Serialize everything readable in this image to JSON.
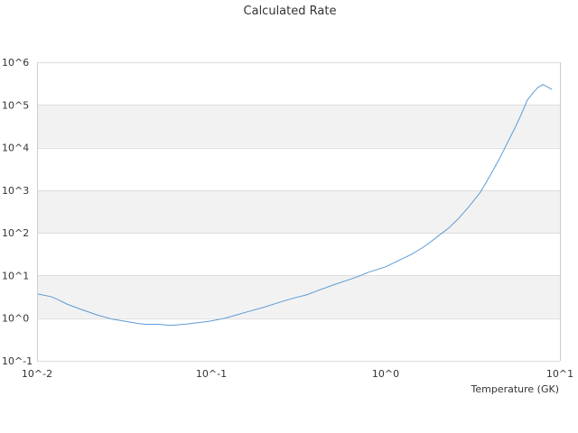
{
  "chart_data": {
    "type": "line",
    "title": "Calculated Rate",
    "xlabel": "Temperature (GK)",
    "ylabel": "",
    "x_scale": "log",
    "y_scale": "log",
    "xlim": [
      0.01,
      10
    ],
    "ylim": [
      0.1,
      1000000
    ],
    "x_ticks": [
      0.01,
      0.1,
      1,
      10
    ],
    "x_tick_labels": [
      "10^-2",
      "10^-1",
      "10^0",
      "10^1"
    ],
    "y_ticks": [
      0.1,
      1,
      10,
      100,
      1000,
      10000,
      100000,
      1000000
    ],
    "y_tick_labels": [
      "10^-1",
      "10^0",
      "10^1",
      "10^2",
      "10^3",
      "10^4",
      "10^5",
      "10^6"
    ],
    "grid": "horizontal alternating bands",
    "band_color": "#f2f2f2",
    "gridline_color": "#dddddd",
    "line_color": "#5b9bd5",
    "series": [
      {
        "x": [
          0.01,
          0.012,
          0.013,
          0.015,
          0.018,
          0.022,
          0.027,
          0.032,
          0.038,
          0.042,
          0.05,
          0.058,
          0.065,
          0.072,
          0.08,
          0.09,
          0.1,
          0.12,
          0.14,
          0.16,
          0.2,
          0.25,
          0.3,
          0.35,
          0.4,
          0.5,
          0.6,
          0.7,
          0.8,
          1.0,
          1.2,
          1.4,
          1.6,
          1.8,
          2.0,
          2.3,
          2.6,
          3.0,
          3.5,
          4.0,
          4.5,
          5.0,
          5.5,
          6.0,
          6.5,
          7.0,
          7.5,
          8.0,
          9.0
        ],
        "y": [
          3.7,
          3.2,
          2.8,
          2.1,
          1.6,
          1.2,
          0.95,
          0.85,
          0.75,
          0.72,
          0.72,
          0.68,
          0.7,
          0.73,
          0.77,
          0.81,
          0.86,
          1.0,
          1.2,
          1.4,
          1.8,
          2.4,
          3.0,
          3.5,
          4.3,
          6.0,
          7.7,
          9.6,
          12,
          16,
          23,
          31,
          43,
          60,
          84,
          130,
          210,
          410,
          900,
          2300,
          5500,
          13000,
          28000,
          60000,
          130000,
          190000,
          260000,
          300000,
          230000
        ]
      }
    ]
  }
}
